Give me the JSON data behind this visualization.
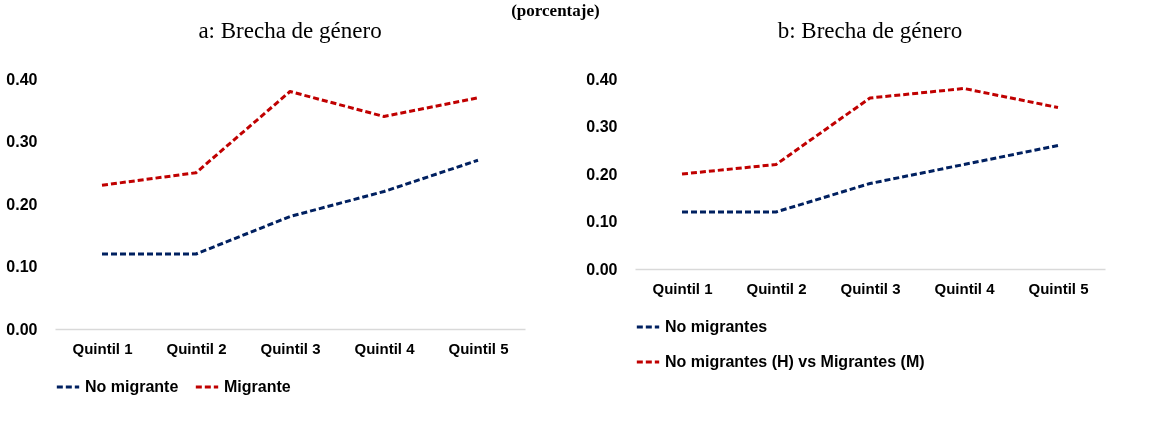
{
  "chart_data": [
    {
      "type": "line",
      "title": "a: Brecha de género",
      "annotations": [
        "(porcentaje)"
      ],
      "categories": [
        "Quintil 1",
        "Quintil 2",
        "Quintil 3",
        "Quintil 4",
        "Quintil 5"
      ],
      "series": [
        {
          "name": "No migrante",
          "color": "#002060",
          "values": [
            0.12,
            0.12,
            0.18,
            0.22,
            0.27
          ]
        },
        {
          "name": "Migrante",
          "color": "#c00000",
          "values": [
            0.23,
            0.25,
            0.38,
            0.34,
            0.37
          ]
        }
      ],
      "ylim": [
        0,
        0.4
      ],
      "yticks": [
        {
          "value": 0,
          "label": "0.00"
        },
        {
          "value": 0.1,
          "label": "0.10"
        },
        {
          "value": 0.2,
          "label": "0.20"
        },
        {
          "value": 0.3,
          "label": "0.30"
        },
        {
          "value": 0.4,
          "label": "0.40"
        }
      ],
      "grid": false,
      "legend": "bottom",
      "marker": "none",
      "line_style": "dashed"
    },
    {
      "type": "line",
      "title": "b: Brecha de género",
      "categories": [
        "Quintil 1",
        "Quintil 2",
        "Quintil 3",
        "Quintil 4",
        "Quintil 5"
      ],
      "series": [
        {
          "name": "No migrantes",
          "color": "#002060",
          "values": [
            0.12,
            0.12,
            0.18,
            0.22,
            0.26
          ]
        },
        {
          "name": "No migrantes (H) vs Migrantes (M)",
          "color": "#c00000",
          "values": [
            0.2,
            0.22,
            0.36,
            0.38,
            0.34
          ]
        }
      ],
      "ylim": [
        0,
        0.4
      ],
      "yticks": [
        {
          "value": 0,
          "label": "0.00"
        },
        {
          "value": 0.1,
          "label": "0.10"
        },
        {
          "value": 0.2,
          "label": "0.20"
        },
        {
          "value": 0.3,
          "label": "0.30"
        },
        {
          "value": 0.4,
          "label": "0.40"
        }
      ],
      "grid": false,
      "legend": "bottom",
      "marker": "none",
      "line_style": "dashed"
    }
  ]
}
